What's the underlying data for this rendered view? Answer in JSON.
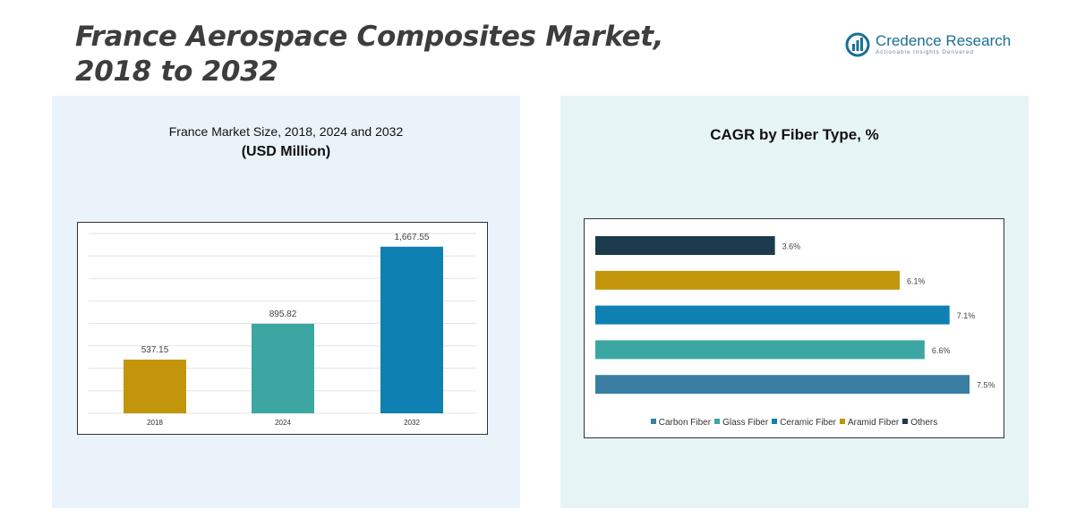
{
  "page": {
    "title_line1": "France Aerospace Composites Market,",
    "title_line2": "2018 to 2032"
  },
  "logo": {
    "name": "Credence Research",
    "tagline": "Actionable Insights Delivered",
    "color": "#1a6f96"
  },
  "chart_data": [
    {
      "type": "bar",
      "title": "France Market Size, 2018, 2024 and 2032",
      "subtitle": "(USD Million)",
      "categories": [
        "2018",
        "2024",
        "2032"
      ],
      "values": [
        537.15,
        895.82,
        1667.55
      ],
      "value_labels": [
        "537.15",
        "895.82",
        "1,667.55"
      ],
      "colors": [
        "#c3950a",
        "#3ca7a2",
        "#0e80b2"
      ],
      "ylim": [
        0,
        1800
      ],
      "grid": true,
      "legend": "none"
    },
    {
      "type": "bar",
      "orientation": "horizontal",
      "title": "CAGR by Fiber Type, %",
      "categories": [
        "Others",
        "Aramid Fiber",
        "Ceramic Fiber",
        "Glass Fiber",
        "Carbon Fiber"
      ],
      "values": [
        3.6,
        6.1,
        7.1,
        6.6,
        7.5
      ],
      "value_labels": [
        "3.6%",
        "6.1%",
        "7.1%",
        "6.6%",
        "7.5%"
      ],
      "colors": [
        "#1b3a4b",
        "#c3950a",
        "#0e80b2",
        "#3ca7a2",
        "#3a7ea3"
      ],
      "xlim": [
        0,
        7.5
      ],
      "grid": false,
      "legend": "bottom",
      "legend_entries": [
        {
          "label": "Carbon Fiber",
          "color": "#3a7ea3"
        },
        {
          "label": "Glass Fiber",
          "color": "#3ca7a2"
        },
        {
          "label": "Ceramic Fiber",
          "color": "#0e80b2"
        },
        {
          "label": "Aramid Fiber",
          "color": "#c3950a"
        },
        {
          "label": "Others",
          "color": "#1b3a4b"
        }
      ]
    }
  ]
}
